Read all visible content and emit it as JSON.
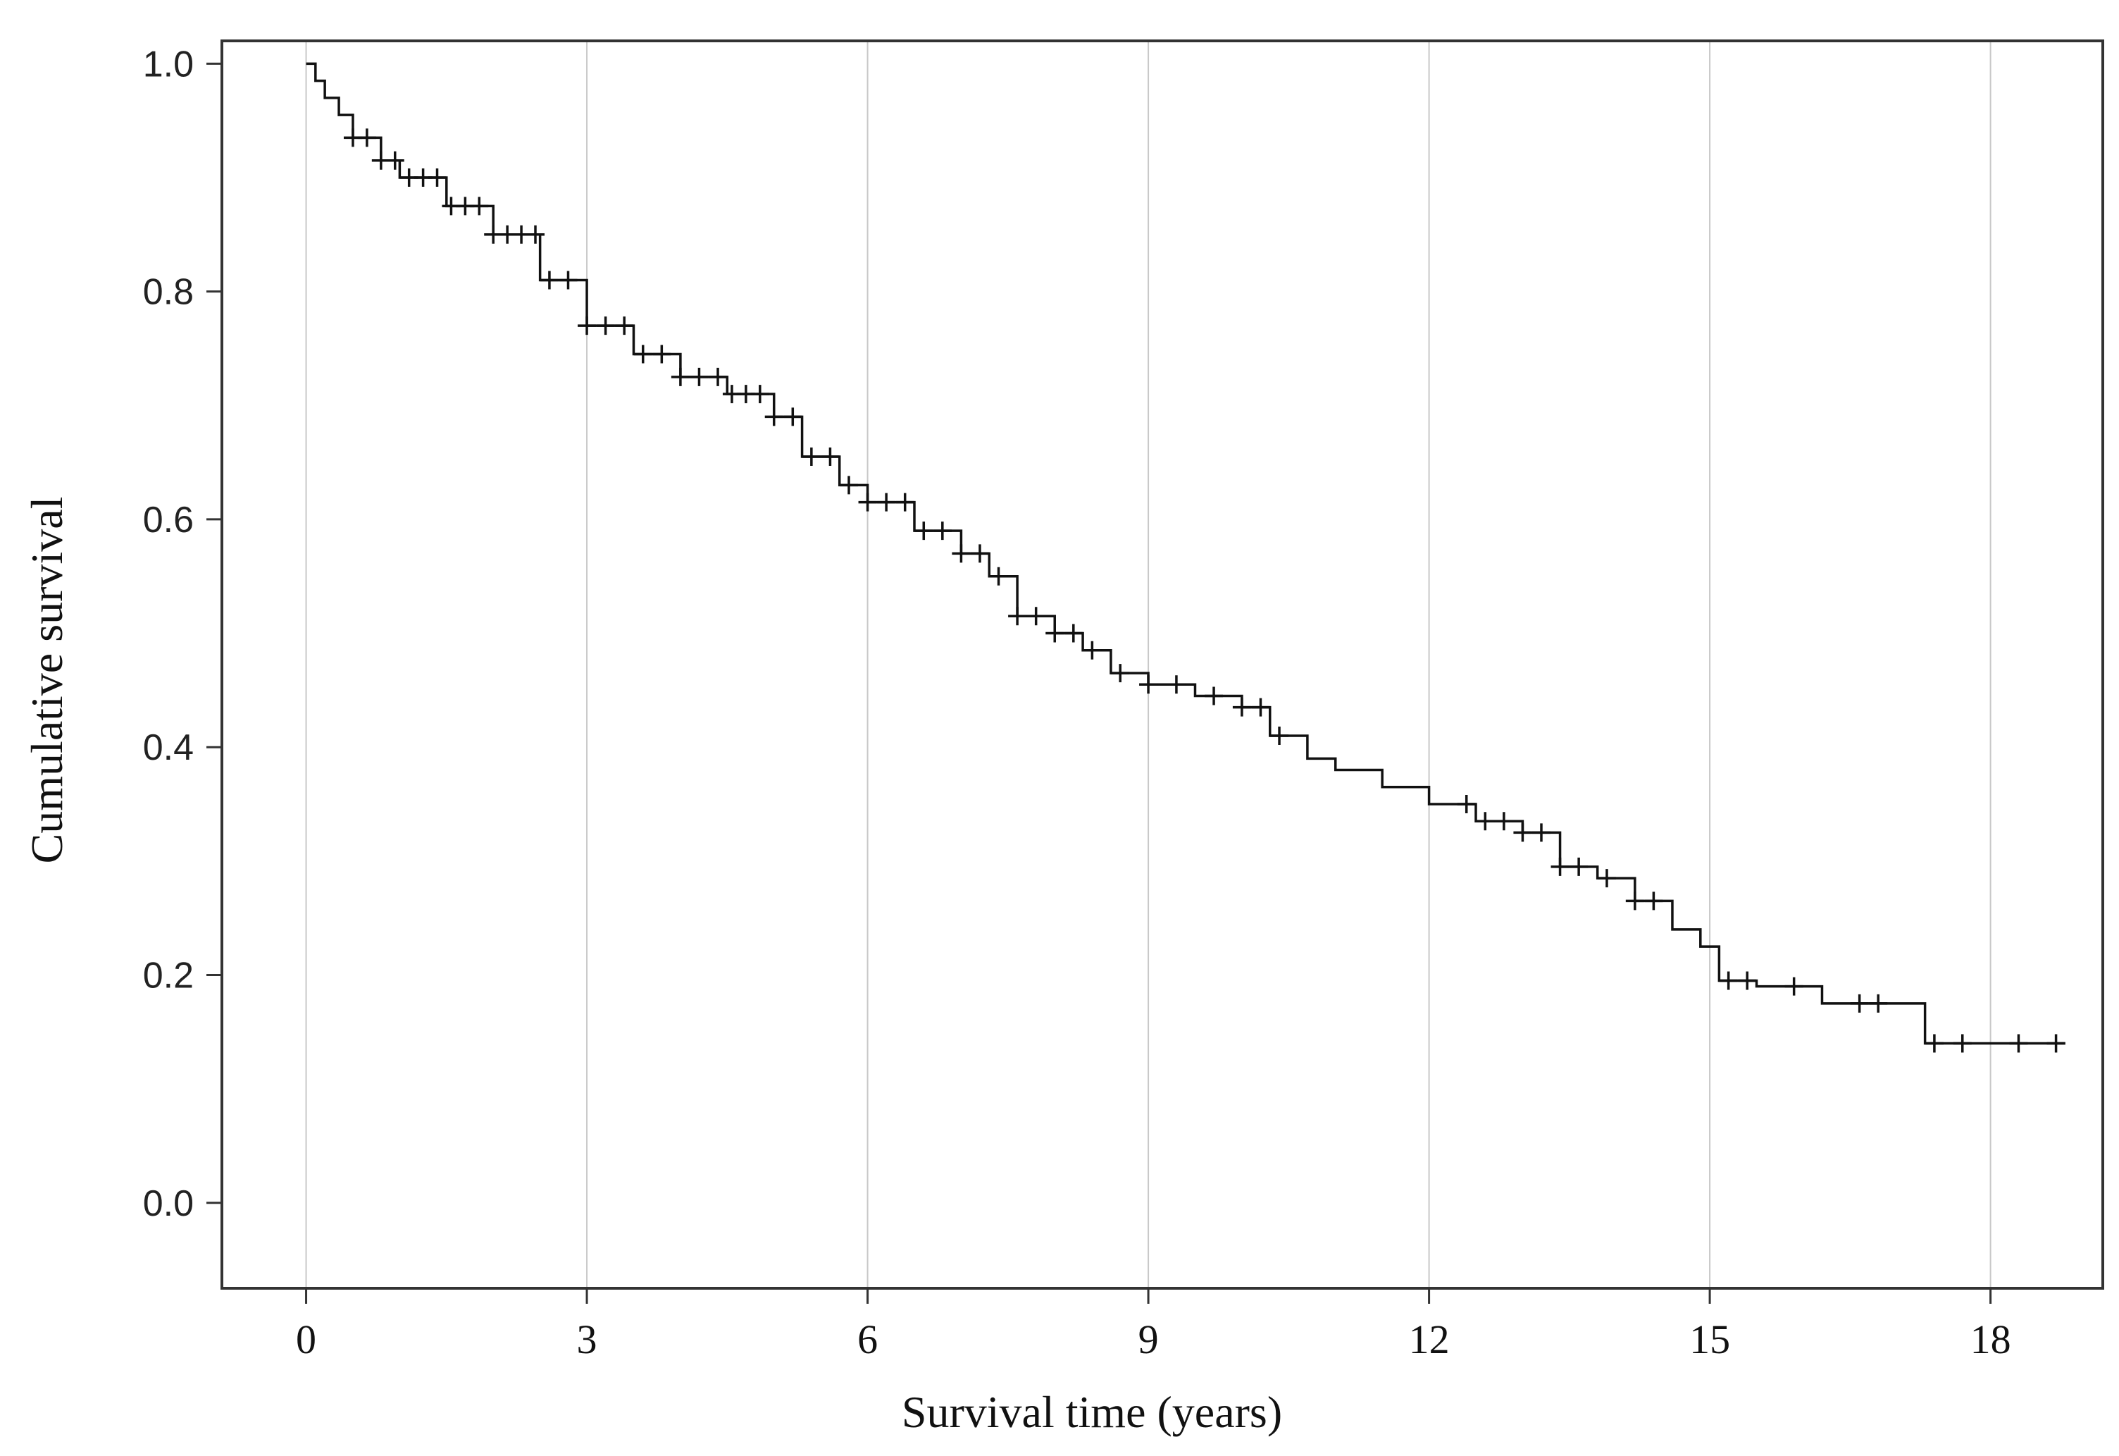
{
  "chart_data": {
    "type": "line",
    "step": true,
    "xlabel": "Survival time (years)",
    "ylabel": "Cumulative survival",
    "xlim": [
      -0.9,
      19.2
    ],
    "ylim": [
      -0.075,
      1.02
    ],
    "x_ticks": [
      0,
      3,
      6,
      9,
      12,
      15,
      18
    ],
    "x_tick_labels": [
      "0",
      "3",
      "6",
      "9",
      "12",
      "15",
      "18"
    ],
    "y_ticks": [
      0.0,
      0.2,
      0.4,
      0.6,
      0.8,
      1.0
    ],
    "y_tick_labels": [
      "0.0",
      "0.2",
      "0.4",
      "0.6",
      "0.8",
      "1.0"
    ],
    "grid": {
      "vertical": true,
      "horizontal": false
    },
    "colors": {
      "line": "#111111",
      "grid": "#c8c8c8",
      "frame": "#333333"
    },
    "series": [
      {
        "x": [
          0,
          0.1,
          0.2,
          0.35,
          0.5,
          0.8,
          1.0,
          1.5,
          2.0,
          2.5,
          3.0,
          3.5,
          4.0,
          4.5,
          5.0,
          5.3,
          5.7,
          6.0,
          6.5,
          7.0,
          7.3,
          7.6,
          8.0,
          8.3,
          8.6,
          9.0,
          9.5,
          10.0,
          10.3,
          10.7,
          11.0,
          11.5,
          12.0,
          12.5,
          13.0,
          13.4,
          13.8,
          14.2,
          14.6,
          14.9,
          15.1,
          15.5,
          16.0,
          16.2,
          16.8,
          17.3,
          18.0,
          18.8
        ],
        "y": [
          1.0,
          0.985,
          0.97,
          0.955,
          0.935,
          0.915,
          0.9,
          0.875,
          0.85,
          0.81,
          0.77,
          0.745,
          0.725,
          0.71,
          0.69,
          0.655,
          0.63,
          0.615,
          0.59,
          0.57,
          0.55,
          0.515,
          0.5,
          0.485,
          0.465,
          0.455,
          0.445,
          0.435,
          0.41,
          0.39,
          0.38,
          0.365,
          0.35,
          0.335,
          0.325,
          0.295,
          0.285,
          0.265,
          0.24,
          0.225,
          0.195,
          0.19,
          0.19,
          0.175,
          0.175,
          0.14,
          0.14,
          0.14
        ],
        "censored": [
          0.5,
          0.65,
          0.8,
          0.95,
          1.1,
          1.25,
          1.4,
          1.55,
          1.7,
          1.85,
          2.0,
          2.15,
          2.3,
          2.45,
          2.6,
          2.8,
          3.0,
          3.2,
          3.4,
          3.6,
          3.8,
          4.0,
          4.2,
          4.4,
          4.55,
          4.7,
          4.85,
          5.0,
          5.2,
          5.4,
          5.6,
          5.8,
          6.0,
          6.2,
          6.4,
          6.6,
          6.8,
          7.0,
          7.2,
          7.4,
          7.6,
          7.8,
          8.0,
          8.2,
          8.4,
          8.7,
          9.0,
          9.3,
          9.7,
          10.0,
          10.2,
          10.4,
          12.4,
          12.6,
          12.8,
          13.0,
          13.2,
          13.4,
          13.6,
          13.9,
          14.2,
          14.4,
          15.2,
          15.4,
          15.9,
          16.6,
          16.8,
          17.4,
          17.7,
          18.3,
          18.7
        ]
      }
    ]
  }
}
